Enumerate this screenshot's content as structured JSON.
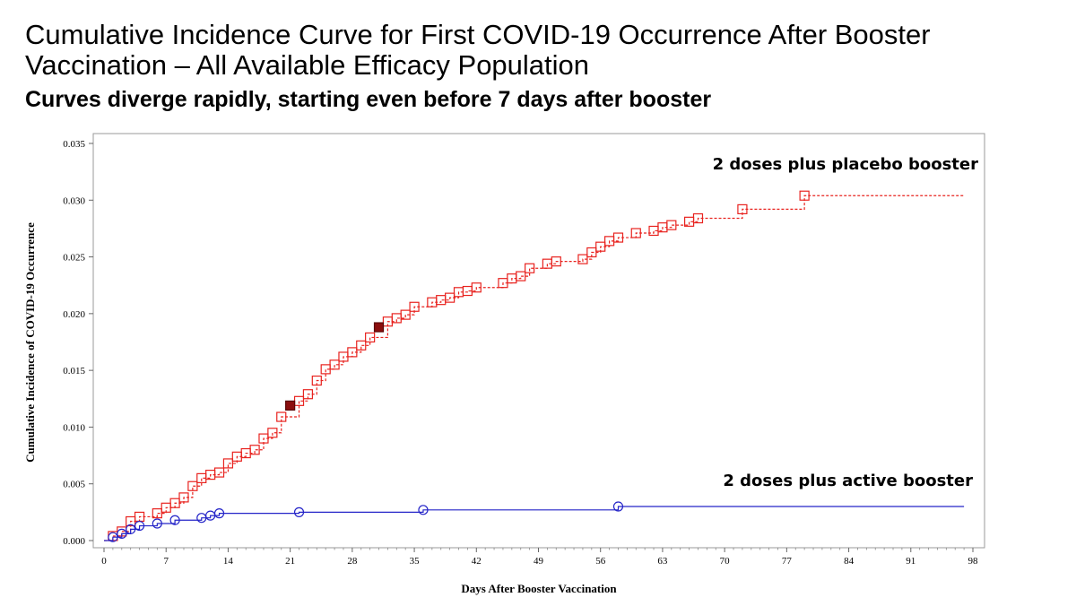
{
  "title": "Cumulative Incidence Curve for First COVID-19 Occurrence After Booster Vaccination – All Available Efficacy Population",
  "subtitle": "Curves diverge rapidly, starting even before 7 days after booster",
  "chart_data": {
    "type": "line",
    "xlabel": "Days After Booster Vaccination",
    "ylabel": "Cumulative Incidence of COVID-19 Occurrence",
    "xlim": [
      0,
      98
    ],
    "ylim": [
      0,
      0.035
    ],
    "xticks": [
      0,
      7,
      14,
      21,
      28,
      35,
      42,
      49,
      56,
      63,
      70,
      77,
      84,
      91,
      98
    ],
    "yticks": [
      "0.000",
      "0.005",
      "0.010",
      "0.015",
      "0.020",
      "0.025",
      "0.030",
      "0.035"
    ],
    "ytick_values": [
      0,
      0.005,
      0.01,
      0.015,
      0.02,
      0.025,
      0.03,
      0.035
    ],
    "series": [
      {
        "name": "2 doses plus placebo booster",
        "color": "#e8231f",
        "line_style": "dashed",
        "marker": "square",
        "end_x": 97,
        "x": [
          1,
          2,
          3,
          4,
          6,
          7,
          8,
          9,
          10,
          11,
          12,
          13,
          14,
          15,
          16,
          17,
          18,
          19,
          20,
          22,
          23,
          24,
          25,
          26,
          27,
          28,
          29,
          30,
          32,
          33,
          34,
          35,
          37,
          38,
          39,
          40,
          41,
          42,
          45,
          46,
          47,
          48,
          50,
          51,
          54,
          55,
          56,
          57,
          58,
          60,
          62,
          63,
          64,
          66,
          67,
          72,
          79
        ],
        "y": [
          0.0004,
          0.0008,
          0.0017,
          0.0021,
          0.0024,
          0.0029,
          0.0033,
          0.0038,
          0.0048,
          0.0055,
          0.0058,
          0.006,
          0.0068,
          0.0074,
          0.0077,
          0.008,
          0.009,
          0.0095,
          0.0109,
          0.0123,
          0.0129,
          0.0141,
          0.0151,
          0.0155,
          0.0162,
          0.0166,
          0.0172,
          0.0179,
          0.0193,
          0.0196,
          0.0199,
          0.0206,
          0.021,
          0.0212,
          0.0214,
          0.0219,
          0.022,
          0.0223,
          0.0227,
          0.0231,
          0.0233,
          0.024,
          0.0244,
          0.0246,
          0.0248,
          0.0254,
          0.0259,
          0.0264,
          0.0267,
          0.0271,
          0.0273,
          0.0276,
          0.0278,
          0.0281,
          0.0284,
          0.0292,
          0.0304
        ],
        "highlighted_points": [
          {
            "x": 21,
            "y": 0.0119
          },
          {
            "x": 31,
            "y": 0.0188
          }
        ]
      },
      {
        "name": "2 doses plus active booster",
        "color": "#2424c8",
        "line_style": "solid",
        "marker": "circle",
        "end_x": 97,
        "x": [
          1,
          2,
          3,
          4,
          6,
          8,
          11,
          12,
          13,
          22,
          36,
          58
        ],
        "y": [
          0.0003,
          0.0006,
          0.001,
          0.0013,
          0.0015,
          0.0018,
          0.002,
          0.0022,
          0.0024,
          0.0025,
          0.0027,
          0.003
        ]
      }
    ]
  }
}
